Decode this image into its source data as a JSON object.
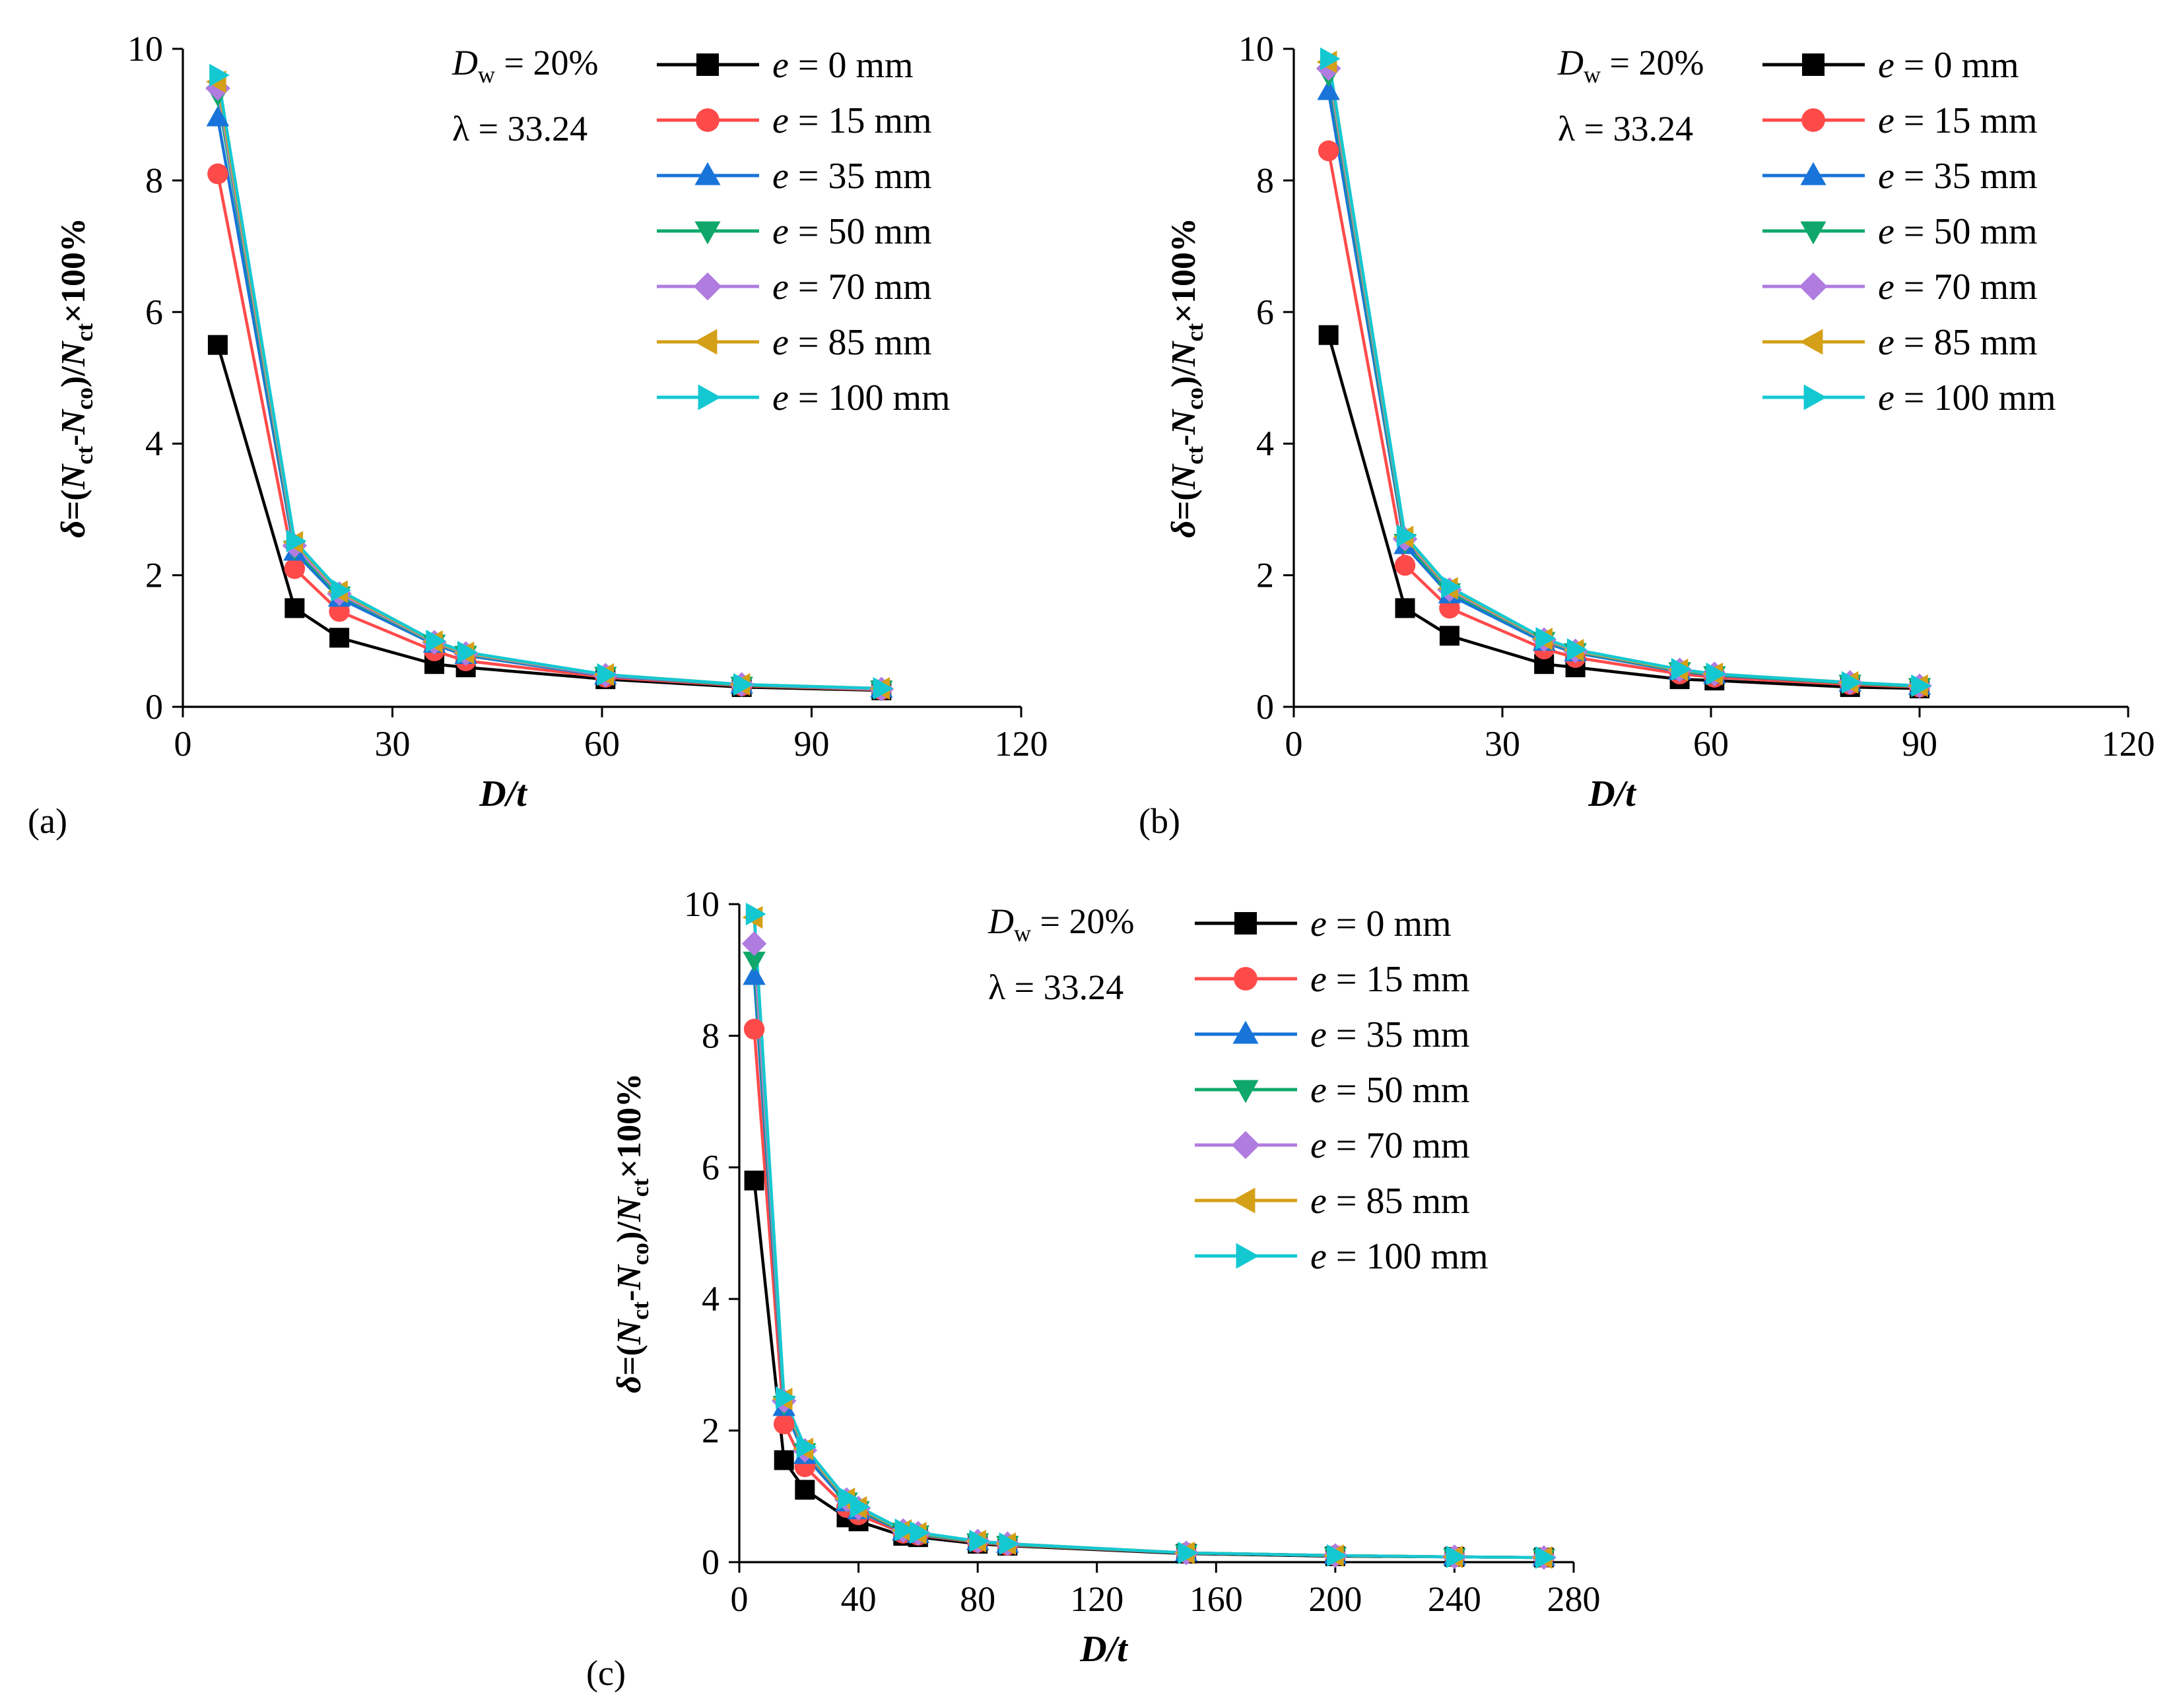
{
  "figure_labels": {
    "ylabel": {
      "delta": "δ",
      "eq": "=(",
      "N1": "N",
      "ct1": "ct",
      "minus": "-",
      "N2": "N",
      "co": "co",
      "close": ")/",
      "N3": "N",
      "ct2": "ct",
      "tail": "×100%"
    },
    "annotation": {
      "dw_D": "D",
      "dw_w": "w",
      "dw_val": " = 20%",
      "lambda": "λ = 33.24"
    },
    "legend_prefix": "e"
  },
  "colors": {
    "e0": "#000000",
    "e15": "#ff4a4a",
    "e35": "#1874d9",
    "e50": "#0fa86a",
    "e70": "#b07ce0",
    "e85": "#d4a017",
    "e100": "#14c8d2"
  },
  "chart_data": [
    {
      "type": "line",
      "panel": "(a)",
      "xlabel": "D/t",
      "ylabel": "δ=(Nct-Nco)/Nct×100%",
      "xlim": [
        0,
        120
      ],
      "ylim": [
        0,
        10
      ],
      "xticks": [
        0,
        30,
        60,
        90,
        120
      ],
      "yticks": [
        0,
        2,
        4,
        6,
        8,
        10
      ],
      "x": [
        5,
        16,
        22.4,
        36,
        40.5,
        60.5,
        80,
        100
      ],
      "series": [
        {
          "name": " = 0 mm",
          "key": "e0",
          "marker": "square",
          "values": [
            5.5,
            1.5,
            1.05,
            0.65,
            0.6,
            0.42,
            0.3,
            0.25
          ]
        },
        {
          "name": " = 15 mm",
          "key": "e15",
          "marker": "circle",
          "values": [
            8.1,
            2.1,
            1.45,
            0.85,
            0.7,
            0.45,
            0.32,
            0.26
          ]
        },
        {
          "name": " = 35 mm",
          "key": "e35",
          "marker": "triangle-up",
          "values": [
            8.95,
            2.35,
            1.65,
            0.95,
            0.78,
            0.47,
            0.33,
            0.27
          ]
        },
        {
          "name": " = 50 mm",
          "key": "e50",
          "marker": "triangle-down",
          "values": [
            9.3,
            2.4,
            1.7,
            0.97,
            0.8,
            0.48,
            0.33,
            0.27
          ]
        },
        {
          "name": " = 70 mm",
          "key": "e70",
          "marker": "diamond",
          "values": [
            9.4,
            2.45,
            1.72,
            0.98,
            0.81,
            0.48,
            0.34,
            0.27
          ]
        },
        {
          "name": " = 85 mm",
          "key": "e85",
          "marker": "triangle-left",
          "values": [
            9.5,
            2.5,
            1.75,
            0.99,
            0.82,
            0.49,
            0.34,
            0.28
          ]
        },
        {
          "name": " = 100 mm",
          "key": "e100",
          "marker": "triangle-right",
          "values": [
            9.6,
            2.52,
            1.77,
            1.0,
            0.83,
            0.49,
            0.34,
            0.28
          ]
        }
      ]
    },
    {
      "type": "line",
      "panel": "(b)",
      "xlabel": "D/t",
      "ylabel": "δ=(Nct-Nco)/Nct×100%",
      "xlim": [
        0,
        120
      ],
      "ylim": [
        0,
        10
      ],
      "xticks": [
        0,
        30,
        60,
        90,
        120
      ],
      "yticks": [
        0,
        2,
        4,
        6,
        8,
        10
      ],
      "x": [
        5,
        16,
        22.4,
        36,
        40.5,
        55.5,
        60.5,
        80,
        90
      ],
      "series": [
        {
          "name": " = 0 mm",
          "key": "e0",
          "marker": "square",
          "values": [
            5.65,
            1.5,
            1.08,
            0.65,
            0.6,
            0.42,
            0.4,
            0.3,
            0.28
          ]
        },
        {
          "name": " = 15 mm",
          "key": "e15",
          "marker": "circle",
          "values": [
            8.45,
            2.15,
            1.5,
            0.88,
            0.75,
            0.5,
            0.45,
            0.34,
            0.3
          ]
        },
        {
          "name": " = 35 mm",
          "key": "e35",
          "marker": "triangle-up",
          "values": [
            9.35,
            2.45,
            1.7,
            0.98,
            0.82,
            0.54,
            0.48,
            0.36,
            0.31
          ]
        },
        {
          "name": " = 50 mm",
          "key": "e50",
          "marker": "triangle-down",
          "values": [
            9.6,
            2.5,
            1.75,
            1.01,
            0.84,
            0.55,
            0.49,
            0.36,
            0.31
          ]
        },
        {
          "name": " = 70 mm",
          "key": "e70",
          "marker": "diamond",
          "values": [
            9.7,
            2.55,
            1.78,
            1.02,
            0.85,
            0.56,
            0.5,
            0.37,
            0.32
          ]
        },
        {
          "name": " = 85 mm",
          "key": "e85",
          "marker": "triangle-left",
          "values": [
            9.8,
            2.58,
            1.8,
            1.03,
            0.86,
            0.56,
            0.5,
            0.37,
            0.32
          ]
        },
        {
          "name": " = 100 mm",
          "key": "e100",
          "marker": "triangle-right",
          "values": [
            9.85,
            2.6,
            1.82,
            1.04,
            0.87,
            0.57,
            0.5,
            0.37,
            0.32
          ]
        }
      ]
    },
    {
      "type": "line",
      "panel": "(c)",
      "xlabel": "D/t",
      "ylabel": "δ=(Nct-Nco)/Nct×100%",
      "xlim": [
        0,
        280
      ],
      "ylim": [
        0,
        10
      ],
      "xticks": [
        0,
        40,
        80,
        120,
        160,
        200,
        240,
        280
      ],
      "yticks": [
        0,
        2,
        4,
        6,
        8,
        10
      ],
      "x": [
        5,
        15,
        22,
        36,
        40,
        55,
        60,
        80,
        90,
        150,
        200,
        240,
        270
      ],
      "series": [
        {
          "name": " = 0 mm",
          "key": "e0",
          "marker": "square",
          "values": [
            5.8,
            1.55,
            1.1,
            0.68,
            0.62,
            0.4,
            0.38,
            0.28,
            0.25,
            0.13,
            0.09,
            0.08,
            0.07
          ]
        },
        {
          "name": " = 15 mm",
          "key": "e15",
          "marker": "circle",
          "values": [
            8.1,
            2.1,
            1.45,
            0.83,
            0.72,
            0.44,
            0.41,
            0.3,
            0.26,
            0.14,
            0.1,
            0.08,
            0.07
          ]
        },
        {
          "name": " = 35 mm",
          "key": "e35",
          "marker": "triangle-up",
          "values": [
            8.9,
            2.35,
            1.62,
            0.9,
            0.78,
            0.46,
            0.42,
            0.31,
            0.27,
            0.14,
            0.1,
            0.08,
            0.07
          ]
        },
        {
          "name": " = 50 mm",
          "key": "e50",
          "marker": "triangle-down",
          "values": [
            9.15,
            2.4,
            1.68,
            0.93,
            0.8,
            0.47,
            0.43,
            0.31,
            0.27,
            0.14,
            0.1,
            0.08,
            0.07
          ]
        },
        {
          "name": " = 70 mm",
          "key": "e70",
          "marker": "diamond",
          "values": [
            9.4,
            2.45,
            1.7,
            0.95,
            0.82,
            0.48,
            0.44,
            0.32,
            0.28,
            0.14,
            0.1,
            0.08,
            0.07
          ]
        },
        {
          "name": " = 85 mm",
          "key": "e85",
          "marker": "triangle-left",
          "values": [
            9.8,
            2.48,
            1.72,
            0.96,
            0.83,
            0.48,
            0.44,
            0.32,
            0.28,
            0.14,
            0.1,
            0.08,
            0.07
          ]
        },
        {
          "name": " = 100 mm",
          "key": "e100",
          "marker": "triangle-right",
          "values": [
            9.85,
            2.5,
            1.75,
            0.97,
            0.84,
            0.49,
            0.45,
            0.32,
            0.28,
            0.14,
            0.1,
            0.08,
            0.07
          ]
        }
      ]
    }
  ]
}
